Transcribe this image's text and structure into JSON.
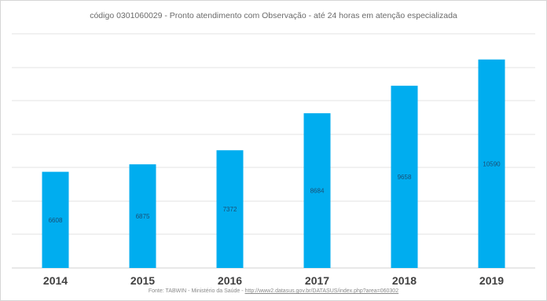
{
  "chart_data": {
    "type": "bar",
    "title": "código 0301060029 - Pronto atendimento com Observação - até 24 horas em atenção especializada",
    "xlabel": "",
    "ylabel": "",
    "categories": [
      "2014",
      "2015",
      "2016",
      "2017",
      "2018",
      "2019"
    ],
    "values": [
      6608,
      6875,
      7372,
      8684,
      9658,
      10590
    ],
    "data_labels": [
      "6608",
      "6875",
      "7372",
      "8684",
      "9658",
      "10590"
    ],
    "ylim": [
      3200,
      11500
    ],
    "grid": true,
    "legend": "none",
    "colors": {
      "bar": "#00adef",
      "grid": "#e3e3e3",
      "label": "#1a4f75",
      "tick": "#404040"
    }
  },
  "source": {
    "prefix": "Fonte: TABWIN - Ministério da Saúde -",
    "link": "http://www2.datasus.gov.br/DATASUS/index.php?area=060302"
  }
}
